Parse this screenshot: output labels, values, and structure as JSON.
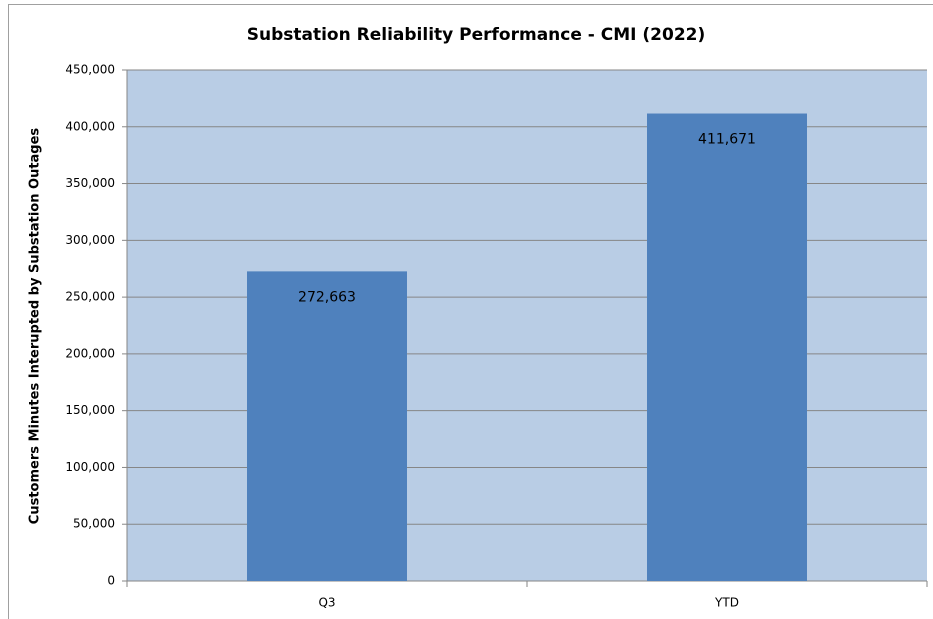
{
  "chart_data": {
    "type": "bar",
    "title": "Substation Reliability Performance - CMI (2022)",
    "y_label": "Customers Minutes Interupted by Substation Outages",
    "categories": [
      "Q3",
      "YTD"
    ],
    "values": [
      272663,
      411671
    ],
    "value_labels": [
      "272,663",
      "411,671"
    ],
    "color": "#4f81bd",
    "ylim": [
      0,
      450000
    ],
    "yticks": [
      0,
      {
        "value": 50000,
        "label": "50,000"
      },
      {
        "value": 100000,
        "label": "100,000"
      },
      {
        "value": 150000,
        "label": "150,000"
      },
      {
        "value": 200000,
        "label": "200,000"
      },
      {
        "value": 250000,
        "label": "250,000"
      },
      {
        "value": 300000,
        "label": "300,000"
      },
      {
        "value": 350000,
        "label": "350,000"
      },
      {
        "value": 400000,
        "label": "400,000"
      },
      {
        "value": 450000,
        "label": "450,000"
      }
    ],
    "grid": true
  }
}
